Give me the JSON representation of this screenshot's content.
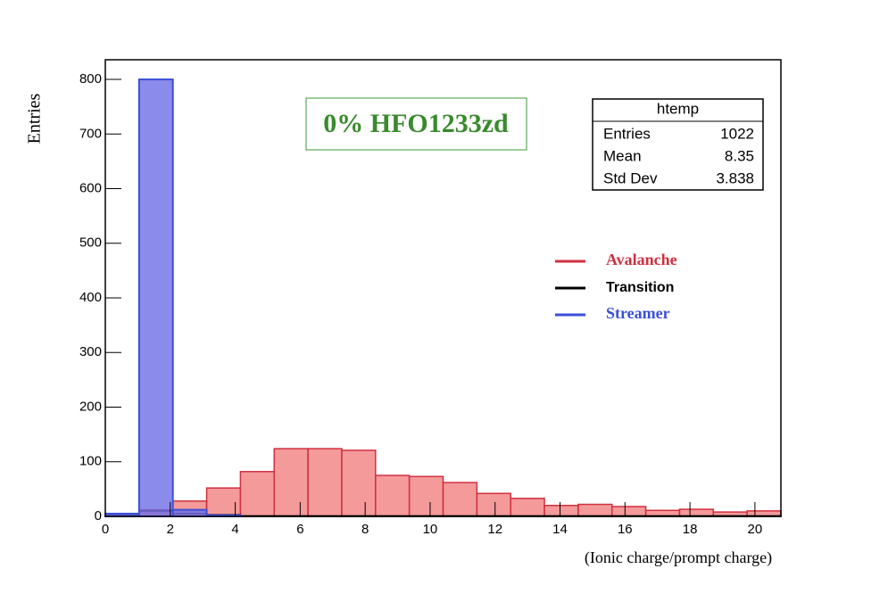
{
  "chart_data": {
    "type": "histogram",
    "annotation": "0% HFO1233zd",
    "x_label": "(Ionic charge/prompt charge)",
    "y_label": "Entries",
    "bins": [
      0,
      1.04,
      2.08,
      3.12,
      4.16,
      5.2,
      6.24,
      7.28,
      8.32,
      9.36,
      10.4,
      11.44,
      12.48,
      13.52,
      14.56,
      15.6,
      16.64,
      17.68,
      18.72,
      19.76,
      20.8
    ],
    "series": [
      {
        "name": "Avalanche",
        "color": "#d0303f",
        "values": [
          5,
          12,
          28,
          52,
          82,
          124,
          124,
          121,
          75,
          73,
          62,
          42,
          33,
          20,
          22,
          18,
          11,
          13,
          8,
          10
        ]
      },
      {
        "name": "Transition",
        "color": "#000000",
        "values": [
          3,
          10,
          5,
          3,
          1,
          1,
          1,
          1,
          1,
          1,
          1,
          1,
          1,
          1,
          1,
          1,
          1,
          1,
          1,
          1
        ]
      },
      {
        "name": "Streamer",
        "color": "#3a4fd8",
        "values": [
          5,
          800,
          12,
          2,
          0,
          0,
          0,
          0,
          0,
          0,
          0,
          0,
          0,
          0,
          0,
          0,
          0,
          0,
          0,
          0
        ]
      }
    ],
    "xlim": [
      0,
      20.8
    ],
    "ylim": [
      0,
      836
    ],
    "xticks": [
      0,
      2,
      4,
      6,
      8,
      10,
      12,
      14,
      16,
      18,
      20
    ],
    "yticks": [
      0,
      100,
      200,
      300,
      400,
      500,
      600,
      700,
      800
    ],
    "stats_box": {
      "title": "htemp",
      "rows": [
        [
          "Entries",
          1022
        ],
        [
          "Mean",
          8.35
        ],
        [
          "Std Dev",
          3.838
        ]
      ]
    }
  }
}
